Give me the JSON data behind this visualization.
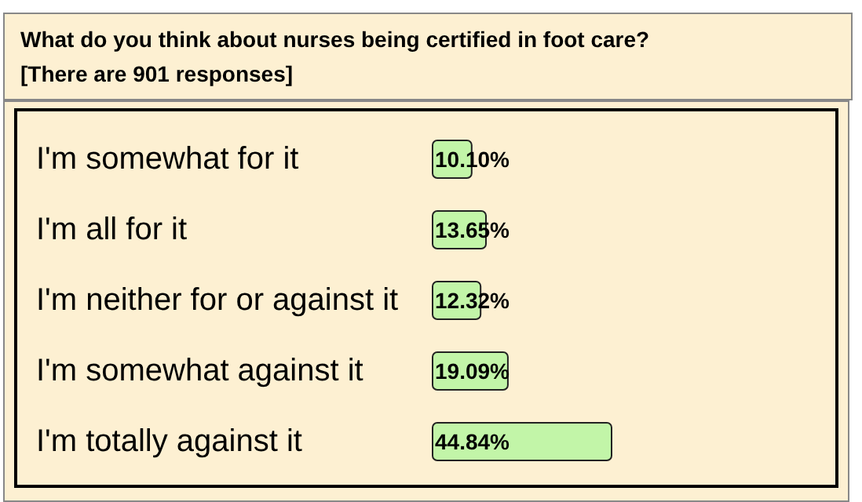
{
  "chart_data": {
    "type": "bar",
    "orientation": "horizontal",
    "title": "What do you think about nurses being certified in foot care?",
    "subtitle": "[There are 901 responses]",
    "categories": [
      "I'm somewhat for it",
      "I'm all for it",
      "I'm neither for or against it",
      "I'm somewhat against it",
      "I'm totally against it"
    ],
    "values": [
      10.1,
      13.65,
      12.32,
      19.09,
      44.84
    ],
    "value_labels": [
      "10.10%",
      "13.65%",
      "12.32%",
      "19.09%",
      "44.84%"
    ],
    "color": "#c2f5a8"
  }
}
